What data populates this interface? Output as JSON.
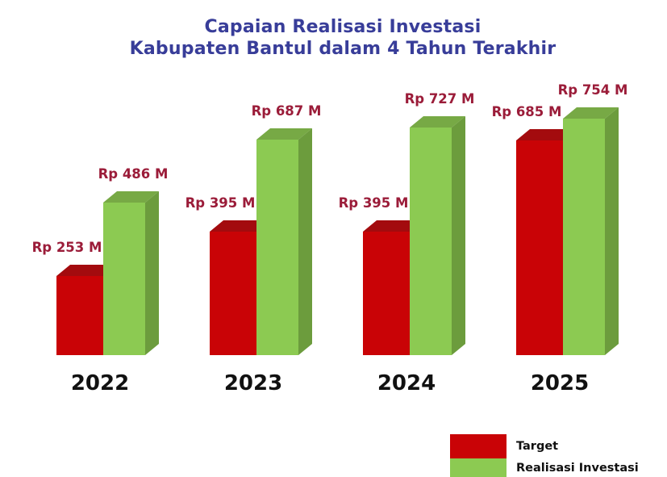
{
  "title": {
    "line1": "Capaian Realisasi Investasi",
    "line2": "Kabupaten Bantul dalam 4 Tahun Terakhir",
    "color": "#383D99"
  },
  "chart_data": {
    "type": "bar",
    "style": "3d-paired-columns",
    "title": "Capaian Realisasi Investasi Kabupaten Bantul dalam 4 Tahun Terakhir",
    "categories": [
      "2022",
      "2023",
      "2024",
      "2025"
    ],
    "series": [
      {
        "name": "Target",
        "values": [
          253,
          395,
          395,
          685
        ],
        "value_labels": [
          "Rp 253 M",
          "Rp 395 M",
          "Rp 395 M",
          "Rp 685 M"
        ],
        "color_front": "#C90306",
        "color_top": "#A30B0E"
      },
      {
        "name": "Realisasi Investasi",
        "values": [
          486,
          687,
          727,
          754
        ],
        "value_labels": [
          "Rp 486 M",
          "Rp 687 M",
          "Rp 727 M",
          "Rp 754 M"
        ],
        "color_front": "#8CCA52",
        "color_top": "#77A945",
        "color_side": "#6C9C3D"
      }
    ],
    "value_label_color": "#9B1C39",
    "category_label_color": "#111111",
    "ylim": [
      0,
      800
    ],
    "grid": false,
    "axes_visible": false,
    "legend": {
      "position": "bottom-right",
      "items": [
        {
          "label": "Target",
          "color": "#C90306"
        },
        {
          "label": "Realisasi Investasi",
          "color": "#8CCA52"
        }
      ]
    }
  }
}
